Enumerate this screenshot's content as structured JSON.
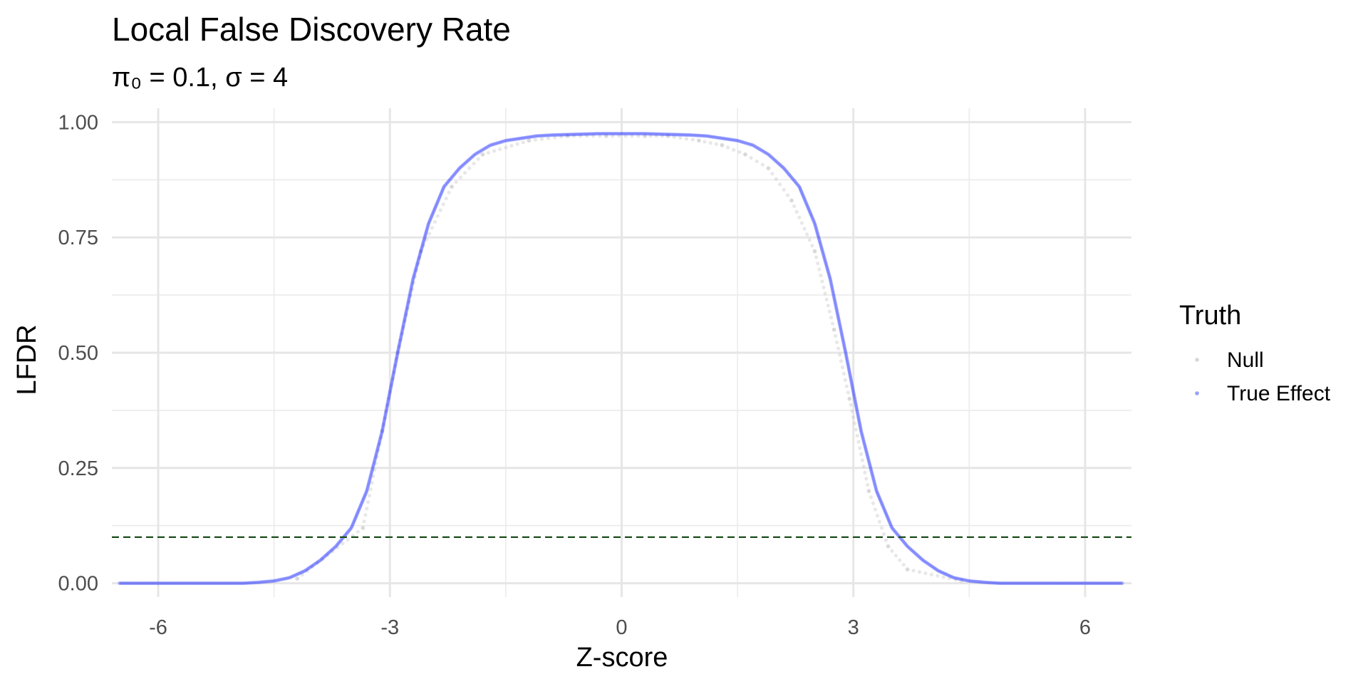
{
  "chart_data": {
    "type": "scatter",
    "title": "Local False Discovery Rate",
    "subtitle": "π₀ = 0.1, σ = 4",
    "xlabel": "Z-score",
    "ylabel": "LFDR",
    "xlim": [
      -6.6,
      6.6
    ],
    "ylim": [
      -0.03,
      1.03
    ],
    "x_ticks": [
      -6,
      -3,
      0,
      3,
      6
    ],
    "x_tick_labels": [
      "-6",
      "-3",
      "0",
      "3",
      "6"
    ],
    "y_ticks": [
      0,
      0.25,
      0.5,
      0.75,
      1.0
    ],
    "y_tick_labels": [
      "0.00",
      "0.25",
      "0.50",
      "0.75",
      "1.00"
    ],
    "reference_line": {
      "y": 0.1,
      "style": "dashed",
      "color": "#1a4d1a"
    },
    "legend": {
      "title": "Truth",
      "position": "right"
    },
    "grid": true,
    "curve_params": {
      "pi0": 0.1,
      "sigma": 4
    },
    "series": [
      {
        "name": "Null",
        "color": "#bdbdbd",
        "opacity": 0.35,
        "x": [
          -3.35,
          -3.1,
          -2.9,
          -2.6,
          -2.2,
          -1.8,
          -1.2,
          -0.7,
          -0.2,
          0.3,
          0.6,
          1.0,
          1.3,
          1.6,
          1.9,
          2.2,
          2.5,
          2.75,
          2.95,
          3.2,
          3.45,
          3.7,
          -4.2,
          4.4
        ],
        "y": [
          0.12,
          0.33,
          0.5,
          0.72,
          0.86,
          0.93,
          0.96,
          0.97,
          0.97,
          0.97,
          0.97,
          0.96,
          0.95,
          0.93,
          0.9,
          0.83,
          0.72,
          0.55,
          0.4,
          0.2,
          0.08,
          0.03,
          0.01,
          0.005
        ]
      },
      {
        "name": "True Effect",
        "color": "#1f2bff",
        "opacity": 0.3,
        "x": [
          -6.5,
          -6.3,
          -6.1,
          -5.9,
          -5.7,
          -5.5,
          -5.3,
          -5.1,
          -4.9,
          -4.7,
          -4.5,
          -4.3,
          -4.1,
          -3.9,
          -3.7,
          -3.5,
          -3.3,
          -3.1,
          -2.9,
          -2.7,
          -2.5,
          -2.3,
          -2.1,
          -1.9,
          -1.7,
          -1.5,
          -1.3,
          -1.1,
          -0.9,
          -0.7,
          -0.5,
          -0.3,
          -0.1,
          0.1,
          0.3,
          0.5,
          0.7,
          0.9,
          1.1,
          1.3,
          1.5,
          1.7,
          1.9,
          2.1,
          2.3,
          2.5,
          2.7,
          2.9,
          3.1,
          3.3,
          3.5,
          3.7,
          3.9,
          4.1,
          4.3,
          4.5,
          4.7,
          4.9,
          5.1,
          5.3,
          5.5,
          5.7,
          5.9,
          6.1,
          6.3,
          6.5
        ],
        "y": [
          0.0,
          0.0,
          0.0,
          0.0,
          0.0,
          0.0,
          0.0,
          0.0,
          0.0,
          0.002,
          0.005,
          0.012,
          0.027,
          0.05,
          0.08,
          0.12,
          0.2,
          0.33,
          0.5,
          0.66,
          0.78,
          0.86,
          0.9,
          0.93,
          0.95,
          0.96,
          0.965,
          0.97,
          0.972,
          0.973,
          0.974,
          0.975,
          0.975,
          0.975,
          0.975,
          0.974,
          0.973,
          0.972,
          0.97,
          0.965,
          0.96,
          0.95,
          0.93,
          0.9,
          0.86,
          0.78,
          0.66,
          0.5,
          0.33,
          0.2,
          0.12,
          0.08,
          0.05,
          0.027,
          0.012,
          0.005,
          0.002,
          0.0,
          0.0,
          0.0,
          0.0,
          0.0,
          0.0,
          0.0,
          0.0,
          0.0
        ]
      }
    ]
  }
}
